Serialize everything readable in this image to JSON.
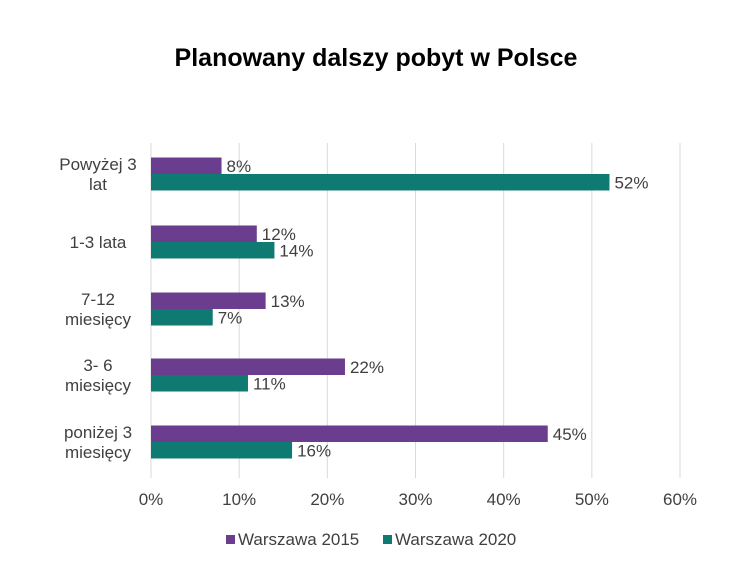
{
  "chart_data": {
    "type": "bar",
    "orientation": "horizontal",
    "title": "Planowany dalszy pobyt w Polsce",
    "categories": [
      [
        "Powyżej 3",
        "lat"
      ],
      [
        "1-3 lata"
      ],
      [
        "7-12",
        "miesięcy"
      ],
      [
        "3- 6",
        "miesięcy"
      ],
      [
        "poniżej 3",
        "miesięcy"
      ]
    ],
    "series": [
      {
        "name": "Warszawa 2015",
        "color": "#6a3d8f",
        "values": [
          8,
          12,
          13,
          22,
          45
        ]
      },
      {
        "name": "Warszawa 2020",
        "color": "#0f7a72",
        "values": [
          52,
          14,
          7,
          11,
          16
        ]
      }
    ],
    "xlim": [
      0,
      60
    ],
    "xticks": [
      0,
      10,
      20,
      30,
      40,
      50,
      60
    ],
    "value_suffix": "%",
    "grid": true,
    "legend_position": "bottom"
  }
}
